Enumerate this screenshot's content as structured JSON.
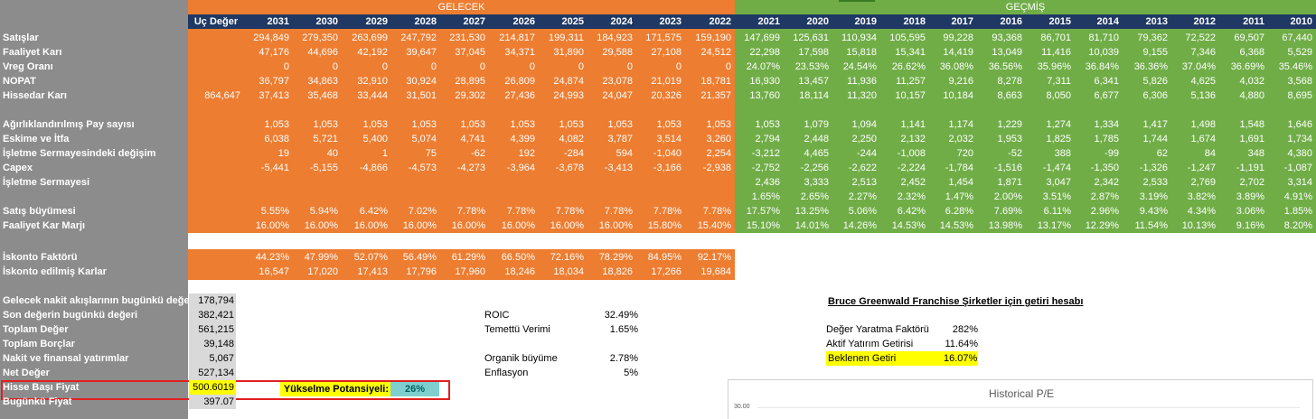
{
  "sections": {
    "future": "GELECEK",
    "past": "GEÇMİŞ"
  },
  "terminal_header": "Uç Değer",
  "future_years": [
    "2031",
    "2030",
    "2029",
    "2028",
    "2027",
    "2026",
    "2025",
    "2024",
    "2023",
    "2022"
  ],
  "past_years": [
    "2021",
    "2020",
    "2019",
    "2018",
    "2017",
    "2016",
    "2015",
    "2014",
    "2013",
    "2012",
    "2011",
    "2010"
  ],
  "rows": [
    {
      "label": "Satışlar",
      "terminal": "",
      "future": [
        "294,849",
        "279,350",
        "263,699",
        "247,792",
        "231,530",
        "214,817",
        "199,311",
        "184,923",
        "171,575",
        "159,190"
      ],
      "past": [
        "147,699",
        "125,631",
        "110,934",
        "105,595",
        "99,228",
        "93,368",
        "86,701",
        "81,710",
        "79,362",
        "72,522",
        "69,507",
        "67,440"
      ]
    },
    {
      "label": "Faaliyet Karı",
      "terminal": "",
      "future": [
        "47,176",
        "44,696",
        "42,192",
        "39,647",
        "37,045",
        "34,371",
        "31,890",
        "29,588",
        "27,108",
        "24,512"
      ],
      "past": [
        "22,298",
        "17,598",
        "15,818",
        "15,341",
        "14,419",
        "13,049",
        "11,416",
        "10,039",
        "9,155",
        "7,346",
        "6,368",
        "5,529"
      ]
    },
    {
      "label": "Vreg Oranı",
      "terminal": "",
      "future": [
        "0",
        "0",
        "0",
        "0",
        "0",
        "0",
        "0",
        "0",
        "0",
        "0"
      ],
      "past": [
        "24.07%",
        "23.53%",
        "24.54%",
        "26.62%",
        "36.08%",
        "36.56%",
        "35.96%",
        "36.84%",
        "36.36%",
        "37.04%",
        "36.69%",
        "35.46%"
      ]
    },
    {
      "label": "NOPAT",
      "terminal": "",
      "future": [
        "36,797",
        "34,863",
        "32,910",
        "30,924",
        "28,895",
        "26,809",
        "24,874",
        "23,078",
        "21,019",
        "18,781"
      ],
      "past": [
        "16,930",
        "13,457",
        "11,936",
        "11,257",
        "9,216",
        "8,278",
        "7,311",
        "6,341",
        "5,826",
        "4,625",
        "4,032",
        "3,568"
      ]
    },
    {
      "label": "Hissedar Karı",
      "terminal": "864,647",
      "future": [
        "37,413",
        "35,468",
        "33,444",
        "31,501",
        "29,302",
        "27,436",
        "24,993",
        "24,047",
        "20,326",
        "21,357"
      ],
      "past": [
        "13,760",
        "18,114",
        "11,320",
        "10,157",
        "10,184",
        "8,663",
        "8,050",
        "6,677",
        "6,306",
        "5,136",
        "4,880",
        "8,695"
      ]
    },
    {
      "label": "Ağırlıklandırılmış Pay sayısı",
      "terminal": "",
      "future": [
        "1,053",
        "1,053",
        "1,053",
        "1,053",
        "1,053",
        "1,053",
        "1,053",
        "1,053",
        "1,053",
        "1,053"
      ],
      "past": [
        "1,053",
        "1,079",
        "1,094",
        "1,141",
        "1,174",
        "1,229",
        "1,274",
        "1,334",
        "1,417",
        "1,498",
        "1,548",
        "1,646"
      ]
    },
    {
      "label": "Eskime ve İtfa",
      "terminal": "",
      "future": [
        "6,038",
        "5,721",
        "5,400",
        "5,074",
        "4,741",
        "4,399",
        "4,082",
        "3,787",
        "3,514",
        "3,260"
      ],
      "past": [
        "2,794",
        "2,448",
        "2,250",
        "2,132",
        "2,032",
        "1,953",
        "1,825",
        "1,785",
        "1,744",
        "1,674",
        "1,691",
        "1,734"
      ]
    },
    {
      "label": "İşletme Sermayesindeki değişim",
      "terminal": "",
      "future": [
        "19",
        "40",
        "1",
        "75",
        "-62",
        "192",
        "-284",
        "594",
        "-1,040",
        "2,254"
      ],
      "past": [
        "-3,212",
        "4,465",
        "-244",
        "-1,008",
        "720",
        "-52",
        "388",
        "-99",
        "62",
        "84",
        "348",
        "4,380"
      ]
    },
    {
      "label": "Capex",
      "terminal": "",
      "future": [
        "-5,441",
        "-5,155",
        "-4,866",
        "-4,573",
        "-4,273",
        "-3,964",
        "-3,678",
        "-3,413",
        "-3,166",
        "-2,938"
      ],
      "past": [
        "-2,752",
        "-2,256",
        "-2,622",
        "-2,224",
        "-1,784",
        "-1,516",
        "-1,474",
        "-1,350",
        "-1,326",
        "-1,247",
        "-1,191",
        "-1,087"
      ]
    },
    {
      "label": "İşletme Sermayesi",
      "terminal": "",
      "future": [
        "",
        "",
        "",
        "",
        "",
        "",
        "",
        "",
        "",
        ""
      ],
      "past": [
        "2,436",
        "3,333",
        "2,513",
        "2,452",
        "1,454",
        "1,871",
        "3,047",
        "2,342",
        "2,533",
        "2,769",
        "2,702",
        "3,314"
      ]
    },
    {
      "label": "",
      "terminal": "",
      "future": [
        "",
        "",
        "",
        "",
        "",
        "",
        "",
        "",
        "",
        ""
      ],
      "past": [
        "1.65%",
        "2.65%",
        "2.27%",
        "2.32%",
        "1.47%",
        "2.00%",
        "3.51%",
        "2.87%",
        "3.19%",
        "3.82%",
        "3.89%",
        "4.91%"
      ]
    },
    {
      "label": "Satış büyümesi",
      "terminal": "",
      "future": [
        "5.55%",
        "5.94%",
        "6.42%",
        "7.02%",
        "7.78%",
        "7.78%",
        "7.78%",
        "7.78%",
        "7.78%",
        "7.78%"
      ],
      "past": [
        "17.57%",
        "13.25%",
        "5.06%",
        "6.42%",
        "6.28%",
        "7.69%",
        "6.11%",
        "2.96%",
        "9.43%",
        "4.34%",
        "3.06%",
        "1.85%"
      ]
    },
    {
      "label": "Faaliyet Kar Marjı",
      "terminal": "",
      "future": [
        "16.00%",
        "16.00%",
        "16.00%",
        "16.00%",
        "16.00%",
        "16.00%",
        "16.00%",
        "16.00%",
        "15.80%",
        "15.40%"
      ],
      "past": [
        "15.10%",
        "14.01%",
        "14.26%",
        "14.53%",
        "14.53%",
        "13.98%",
        "13.17%",
        "12.29%",
        "11.54%",
        "10.13%",
        "9.16%",
        "8.20%"
      ]
    }
  ],
  "discount_rows": [
    {
      "label": "İskonto Faktörü",
      "values": [
        "44.23%",
        "47.99%",
        "52.07%",
        "56.49%",
        "61.29%",
        "66.50%",
        "72.16%",
        "78.29%",
        "84.95%",
        "92.17%"
      ]
    },
    {
      "label": "İskonto edilmiş Karlar",
      "values": [
        "16,547",
        "17,020",
        "17,413",
        "17,796",
        "17,960",
        "18,246",
        "18,034",
        "18,826",
        "17,266",
        "19,684"
      ]
    }
  ],
  "valuation": [
    {
      "label": "Gelecek nakit akışlarının bugünkü değer",
      "value": "178,794"
    },
    {
      "label": "Son değerin bugünkü değeri",
      "value": "382,421"
    },
    {
      "label": "Toplam Değer",
      "value": "561,215"
    },
    {
      "label": "Toplam Borçlar",
      "value": "39,148"
    },
    {
      "label": "Nakit ve finansal yatırımlar",
      "value": "5,067"
    },
    {
      "label": "Net Değer",
      "value": "527,134"
    },
    {
      "label": "Hisse Başı Fiyat",
      "value": "500.6019"
    },
    {
      "label": "Bugünkü Fiyat",
      "value": "397.07"
    }
  ],
  "upside": {
    "label": "Yükselme Potansiyeli:",
    "value": "26%"
  },
  "metrics": [
    {
      "label": "ROIC",
      "value": "32.49%"
    },
    {
      "label": "Temettü Verimi",
      "value": "1.65%"
    },
    {
      "label": "Organik büyüme",
      "value": "2.78%"
    },
    {
      "label": "Enflasyon",
      "value": "5%"
    }
  ],
  "greenwald": {
    "title": "Bruce Greenwald Franchise Şirketler için getiri hesabı",
    "rows": [
      {
        "label": "Değer Yaratma Faktörü",
        "value": "282%"
      },
      {
        "label": "Aktif Yatırım Getirisi",
        "value": "11.64%"
      },
      {
        "label": "Beklenen Getiri",
        "value": "16.07%"
      }
    ]
  },
  "chart": {
    "title": "Historical P/E",
    "ytick": "30.00"
  },
  "colors": {
    "orange": "#ed7d31",
    "green": "#70ad47",
    "navy": "#1f3864",
    "grey": "#8c8c8c",
    "yellow": "#ffff00",
    "teal": "#7fcfcf",
    "red": "#e02020"
  }
}
